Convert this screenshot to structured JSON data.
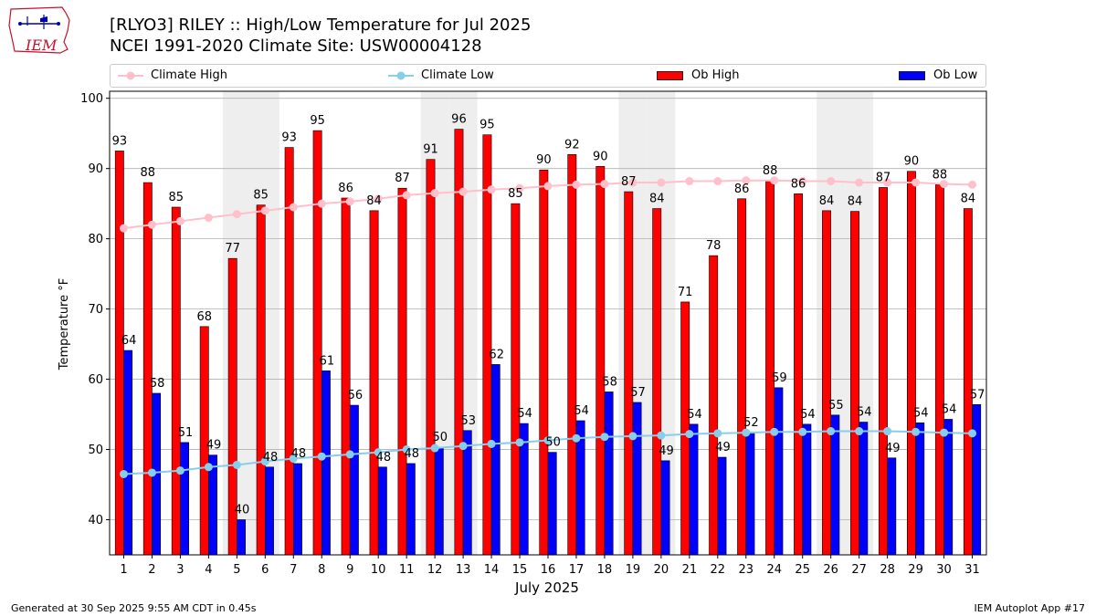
{
  "header": {
    "title_line1": "[RLYO3] RILEY :: High/Low Temperature for Jul 2025",
    "title_line2": "NCEI 1991-2020 Climate Site: USW00004128",
    "logo_text": "IEM"
  },
  "legend": {
    "climate_high": "Climate High",
    "climate_low": "Climate Low",
    "ob_high": "Ob High",
    "ob_low": "Ob Low"
  },
  "colors": {
    "ob_high": "#ff0000",
    "ob_low": "#0000ff",
    "climate_high": "#ffc0cb",
    "climate_low": "#87ceeb",
    "weekend_shade": "#eeeeee",
    "grid": "#b0b0b0"
  },
  "chart_data": {
    "type": "bar",
    "title": "[RLYO3] RILEY :: High/Low Temperature for Jul 2025",
    "xlabel": "July 2025",
    "ylabel": "Temperature °F",
    "ylim": [
      35,
      101
    ],
    "yticks": [
      40,
      50,
      60,
      70,
      80,
      90,
      100
    ],
    "categories": [
      1,
      2,
      3,
      4,
      5,
      6,
      7,
      8,
      9,
      10,
      11,
      12,
      13,
      14,
      15,
      16,
      17,
      18,
      19,
      20,
      21,
      22,
      23,
      24,
      25,
      26,
      27,
      28,
      29,
      30,
      31
    ],
    "series": [
      {
        "name": "Ob High",
        "kind": "bar",
        "values": [
          92.5,
          88,
          84.5,
          67.5,
          77.2,
          84.8,
          93,
          95.4,
          85.8,
          84,
          87.2,
          91.3,
          95.6,
          94.8,
          85,
          89.8,
          92,
          90.3,
          86.7,
          84.3,
          71,
          77.6,
          85.7,
          88.3,
          86.4,
          84,
          83.9,
          87.3,
          89.6,
          87.7,
          84.3
        ],
        "labels": [
          93,
          88,
          85,
          68,
          77,
          85,
          93,
          95,
          86,
          84,
          87,
          91,
          96,
          95,
          85,
          90,
          92,
          90,
          87,
          84,
          71,
          78,
          86,
          88,
          86,
          84,
          84,
          87,
          90,
          88,
          84
        ]
      },
      {
        "name": "Ob Low",
        "kind": "bar",
        "values": [
          64.1,
          58,
          51,
          49.2,
          40,
          47.5,
          48,
          61.2,
          56.3,
          47.5,
          48,
          50.3,
          52.7,
          62.1,
          53.7,
          49.6,
          54.1,
          58.2,
          56.7,
          48.4,
          53.6,
          48.9,
          52.4,
          58.8,
          53.6,
          54.9,
          53.9,
          48.8,
          53.8,
          54.3,
          56.4
        ],
        "labels": [
          64,
          58,
          51,
          49,
          40,
          48,
          48,
          61,
          56,
          48,
          48,
          50,
          53,
          62,
          54,
          50,
          54,
          58,
          57,
          49,
          54,
          49,
          52,
          59,
          54,
          55,
          54,
          49,
          54,
          54,
          57
        ]
      },
      {
        "name": "Climate High",
        "kind": "line",
        "values": [
          81.5,
          82,
          82.5,
          83,
          83.5,
          84,
          84.5,
          85,
          85.3,
          85.7,
          86.2,
          86.5,
          86.7,
          87,
          87.2,
          87.5,
          87.7,
          87.8,
          88,
          88,
          88.2,
          88.2,
          88.3,
          88.3,
          88.2,
          88.2,
          88,
          88,
          88,
          87.8,
          87.7
        ]
      },
      {
        "name": "Climate Low",
        "kind": "line",
        "values": [
          46.5,
          46.7,
          47,
          47.5,
          47.8,
          48.3,
          48.7,
          49,
          49.3,
          49.6,
          50,
          50.2,
          50.5,
          50.8,
          51,
          51.3,
          51.6,
          51.8,
          51.9,
          52,
          52.2,
          52.3,
          52.4,
          52.5,
          52.5,
          52.6,
          52.6,
          52.6,
          52.5,
          52.4,
          52.3
        ]
      }
    ],
    "weekend_days": [
      5,
      6,
      12,
      13,
      19,
      20,
      26,
      27
    ],
    "grid": "horizontal"
  },
  "footer": {
    "generated": "Generated at 30 Sep 2025 9:55 AM CDT in 0.45s",
    "app": "IEM Autoplot App #17"
  }
}
